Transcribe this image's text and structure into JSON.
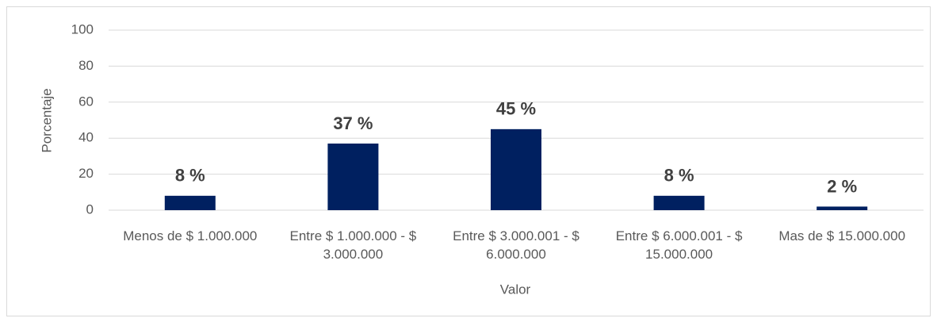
{
  "chart_data": {
    "type": "bar",
    "categories": [
      "Menos de $ 1.000.000",
      "Entre $ 1.000.000 - $ 3.000.000",
      "Entre $ 3.000.001 - $ 6.000.000",
      "Entre $ 6.000.001 - $ 15.000.000",
      "Mas de $ 15.000.000"
    ],
    "values": [
      8,
      37,
      45,
      8,
      2
    ],
    "value_labels": [
      "8 %",
      "37 %",
      "45 %",
      "8 %",
      "2 %"
    ],
    "color": "#002060",
    "x_label": "Valor",
    "y_label": "Porcentaje",
    "ylim": [
      0,
      100
    ],
    "yticks": [
      0,
      20,
      40,
      60,
      80,
      100
    ],
    "grid": true
  }
}
